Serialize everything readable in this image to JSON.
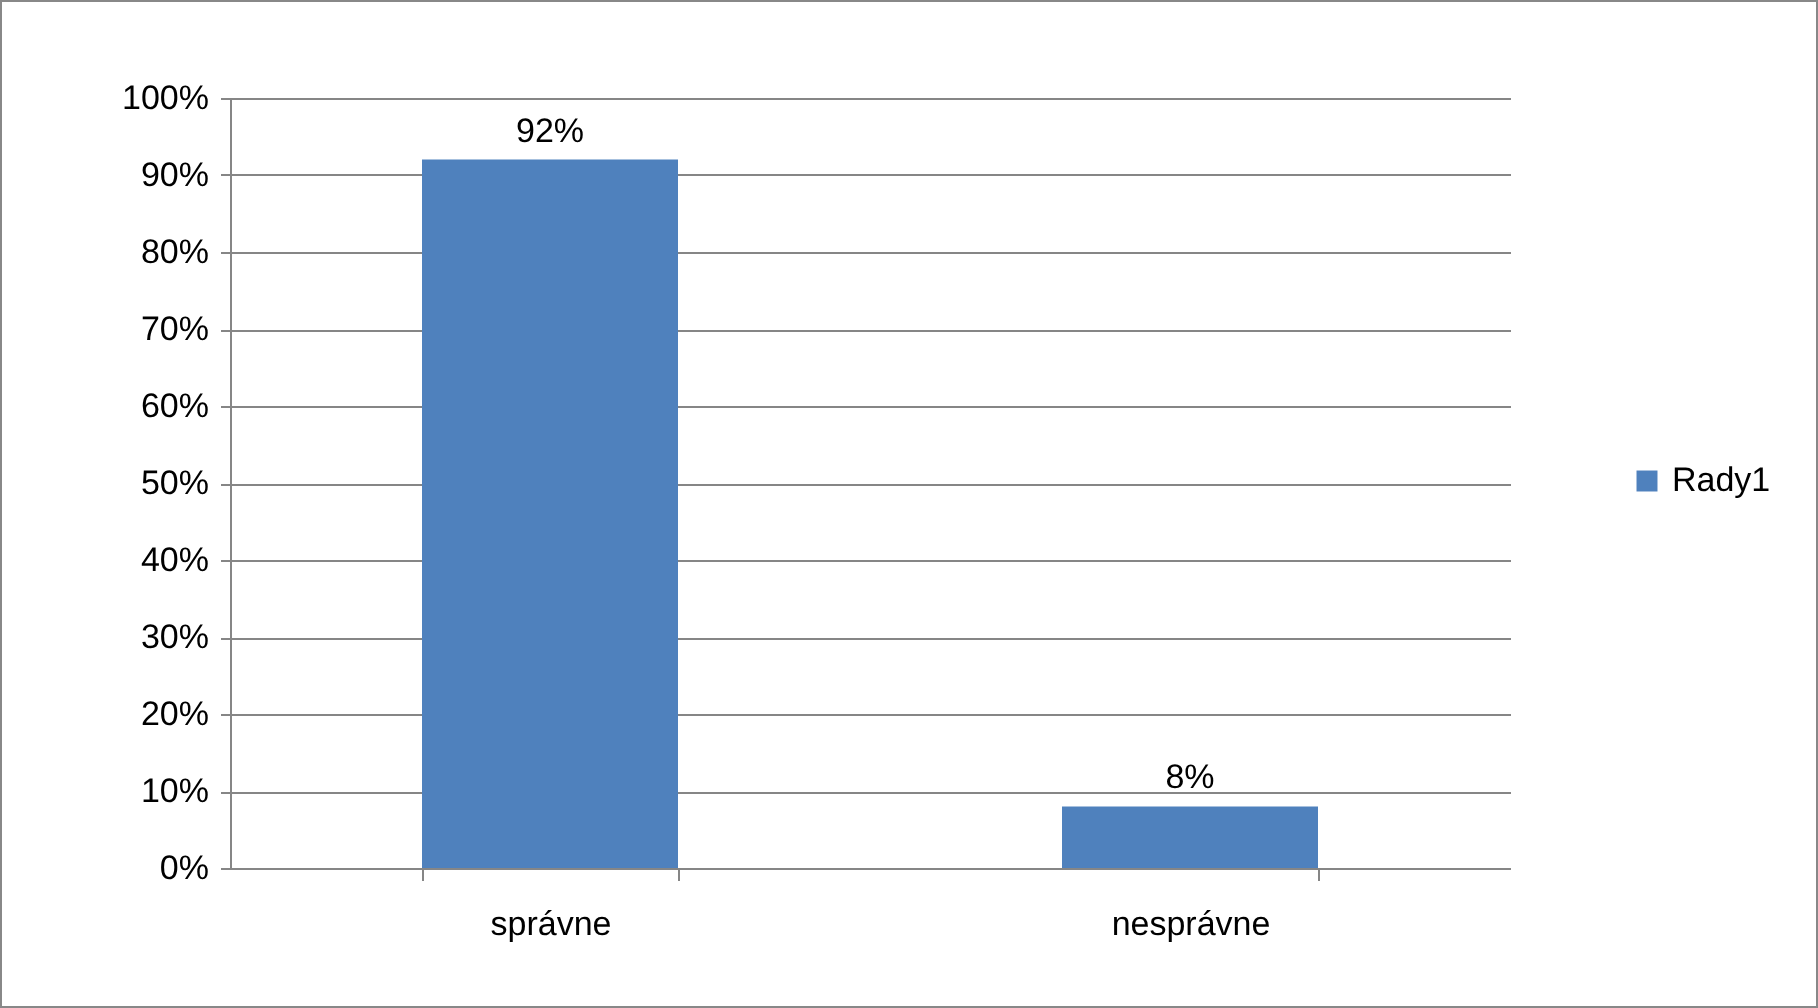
{
  "chart_data": {
    "type": "bar",
    "categories": [
      "správne",
      "nesprávne"
    ],
    "series": [
      {
        "name": "Rady1",
        "color": "#4f81bd",
        "values": [
          92,
          8
        ]
      }
    ],
    "value_labels": [
      "92%",
      "8%"
    ],
    "ylim": [
      0,
      100
    ],
    "yticks": [
      {
        "value": 0,
        "label": "0%"
      },
      {
        "value": 10,
        "label": "10%"
      },
      {
        "value": 20,
        "label": "20%"
      },
      {
        "value": 30,
        "label": "30%"
      },
      {
        "value": 40,
        "label": "40%"
      },
      {
        "value": 50,
        "label": "50%"
      },
      {
        "value": 60,
        "label": "60%"
      },
      {
        "value": 70,
        "label": "70%"
      },
      {
        "value": 80,
        "label": "80%"
      },
      {
        "value": 90,
        "label": "90%"
      },
      {
        "value": 100,
        "label": "100%"
      }
    ],
    "grid": "y",
    "legend": "right"
  }
}
